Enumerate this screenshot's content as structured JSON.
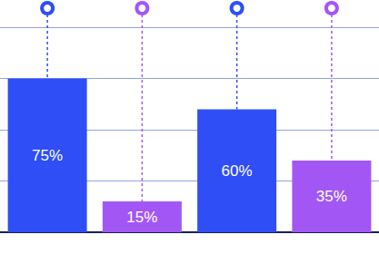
{
  "chart_data": {
    "type": "bar",
    "categories": [
      null,
      null,
      null,
      null
    ],
    "values": [
      75,
      15,
      60,
      35
    ],
    "value_labels": [
      "75%",
      "15%",
      "60%",
      "35%"
    ],
    "colors": [
      "#2f4ef5",
      "#a257f5",
      "#2f4ef5",
      "#a257f5"
    ],
    "ylim": [
      0,
      100
    ],
    "yticks": [
      0,
      25,
      50,
      75,
      100
    ],
    "grid": true,
    "data_labels": true,
    "tick_labels": false
  }
}
